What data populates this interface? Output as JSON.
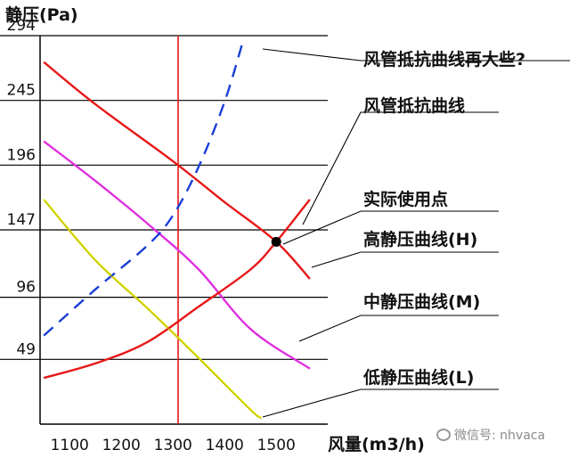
{
  "chart_data": {
    "type": "line",
    "ylabel": "静压(Pa)",
    "xlabel": "风量(m3/h)",
    "x_ticks": [
      1100,
      1200,
      1300,
      1400,
      1500
    ],
    "y_ticks": [
      49,
      96,
      147,
      196,
      245,
      294
    ],
    "xlim": [
      1050,
      1585
    ],
    "ylim": [
      0,
      294
    ],
    "grid": "horizontal",
    "series": [
      {
        "key": "high",
        "name": "高静压曲线(H)",
        "color": "#e81818",
        "points": [
          [
            1050,
            274
          ],
          [
            1150,
            242
          ],
          [
            1300,
            199
          ],
          [
            1400,
            168
          ],
          [
            1500,
            138
          ],
          [
            1565,
            110
          ]
        ]
      },
      {
        "key": "mid",
        "name": "中静压曲线(M)",
        "color": "#e030e0",
        "points": [
          [
            1050,
            214
          ],
          [
            1150,
            184
          ],
          [
            1250,
            152
          ],
          [
            1350,
            117
          ],
          [
            1450,
            72
          ],
          [
            1565,
            42
          ]
        ]
      },
      {
        "key": "low",
        "name": "低静压曲线(L)",
        "color": "#e8e800",
        "points": [
          [
            1050,
            170
          ],
          [
            1150,
            124
          ],
          [
            1250,
            88
          ],
          [
            1350,
            50
          ],
          [
            1450,
            11
          ],
          [
            1470,
            5
          ]
        ]
      },
      {
        "key": "duct",
        "name": "风管抵抗曲线",
        "color": "#e81818",
        "points": [
          [
            1050,
            35
          ],
          [
            1150,
            46
          ],
          [
            1250,
            62
          ],
          [
            1350,
            89
          ],
          [
            1450,
            117
          ],
          [
            1500,
            138
          ],
          [
            1565,
            170
          ]
        ]
      },
      {
        "key": "duct_bigger",
        "name": "风管抵抗曲线再大些?",
        "color": "#1a3ed6",
        "dash": true,
        "points": [
          [
            1050,
            67
          ],
          [
            1150,
            102
          ],
          [
            1250,
            135
          ],
          [
            1300,
            158
          ],
          [
            1350,
            195
          ],
          [
            1400,
            244
          ],
          [
            1435,
            289
          ]
        ]
      }
    ],
    "reference_line_x": 1310,
    "operating_point": {
      "name": "实际使用点",
      "x": 1500,
      "y": 138
    },
    "annotations": [
      {
        "text": "风管抵抗曲线再大些?",
        "target": "duct_bigger"
      },
      {
        "text": "风管抵抗曲线",
        "target": "duct"
      },
      {
        "text": "实际使用点",
        "target": "operating_point"
      },
      {
        "text": "高静压曲线(H)",
        "target": "high"
      },
      {
        "text": "中静压曲线(M)",
        "target": "mid"
      },
      {
        "text": "低静压曲线(L)",
        "target": "low"
      }
    ]
  },
  "watermark": {
    "icon": "wechat-icon",
    "text": "微信号: nhvaca"
  }
}
